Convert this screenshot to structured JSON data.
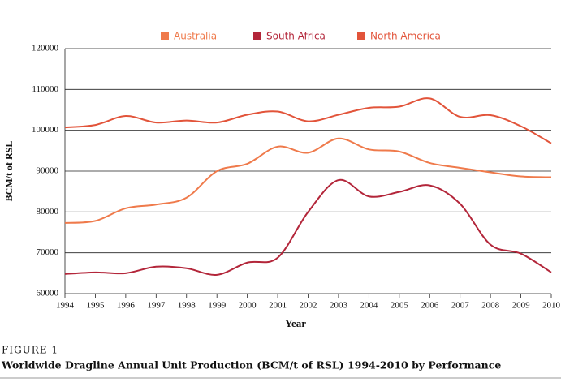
{
  "chart_data": {
    "type": "line",
    "caption": "FIGURE 1",
    "title": "Worldwide Dragline Annual Unit Production (BCM/t of RSL) 1994-2010 by Performance",
    "xlabel": "Year",
    "ylabel": "BCM/t of RSL",
    "x": [
      1994,
      1995,
      1996,
      1997,
      1998,
      1999,
      2000,
      2001,
      2002,
      2003,
      2004,
      2005,
      2006,
      2007,
      2008,
      2009,
      2010
    ],
    "series": [
      {
        "name": "Australia",
        "color": "#ef7a4b",
        "values": [
          77300,
          77800,
          80900,
          81800,
          83500,
          90000,
          91800,
          96000,
          94500,
          98000,
          95300,
          94800,
          92000,
          90800,
          89700,
          88700,
          88500
        ]
      },
      {
        "name": "South Africa",
        "color": "#b3263a",
        "values": [
          64800,
          65200,
          65000,
          66600,
          66200,
          64600,
          67600,
          68800,
          80000,
          87800,
          83800,
          84900,
          86500,
          82000,
          72000,
          69800,
          65200
        ]
      },
      {
        "name": "North America",
        "color": "#e2543a",
        "values": [
          100700,
          101300,
          103500,
          101900,
          102400,
          101900,
          103800,
          104600,
          102200,
          103800,
          105500,
          105800,
          107800,
          103300,
          103700,
          101000,
          96800
        ]
      }
    ],
    "xlim": [
      1994,
      2010
    ],
    "xticks": [
      1994,
      1995,
      1996,
      1997,
      1998,
      1999,
      2000,
      2001,
      2002,
      2003,
      2004,
      2005,
      2006,
      2007,
      2008,
      2009,
      2010
    ],
    "ylim": [
      60000,
      120000
    ],
    "yticks": [
      60000,
      70000,
      80000,
      90000,
      100000,
      110000,
      120000
    ],
    "grid": true,
    "legend": "top"
  }
}
